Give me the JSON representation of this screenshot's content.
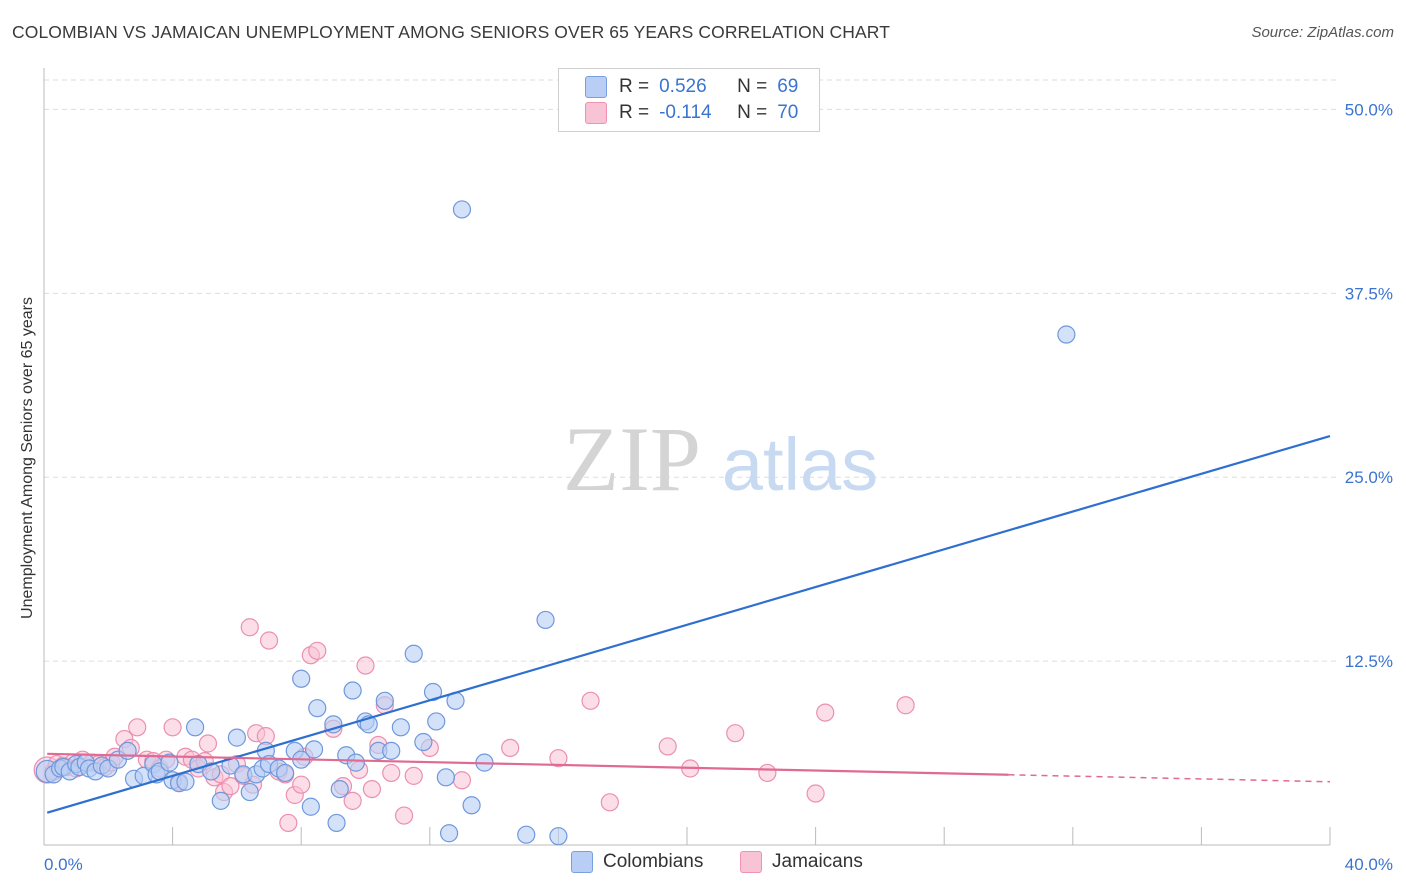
{
  "title": "COLOMBIAN VS JAMAICAN UNEMPLOYMENT AMONG SENIORS OVER 65 YEARS CORRELATION CHART",
  "source": "Source: ZipAtlas.com",
  "watermark": {
    "zip": "ZIP",
    "atlas": "atlas"
  },
  "legend": {
    "colombians": {
      "r_label": "R =",
      "r_value": "0.526",
      "n_label": "N =",
      "n_value": "69"
    },
    "jamaicans": {
      "r_label": "R =",
      "r_value": "-0.114",
      "n_label": "N =",
      "n_value": "70"
    }
  },
  "colors": {
    "colombians_fill": "#b8cef5",
    "colombians_stroke": "#6f98dc",
    "colombians_line": "#2e6fd0",
    "jamaicans_fill": "#f8c3d4",
    "jamaicans_stroke": "#ec8fb0",
    "jamaicans_line": "#e06a93",
    "axis_text": "#3a74d0",
    "grid": "#dddddd"
  },
  "chart_data": {
    "type": "scatter",
    "title": "COLOMBIAN VS JAMAICAN UNEMPLOYMENT AMONG SENIORS OVER 65 YEARS CORRELATION CHART",
    "xlabel": "",
    "ylabel": "Unemployment Among Seniors over 65 years",
    "xlim": [
      0,
      40
    ],
    "ylim": [
      0,
      52
    ],
    "x_tick_labels": [
      "0.0%",
      "40.0%"
    ],
    "y_ticks": [
      12.5,
      25.0,
      37.5,
      50.0
    ],
    "y_tick_labels": [
      "12.5%",
      "25.0%",
      "37.5%",
      "50.0%"
    ],
    "grid": true,
    "series": [
      {
        "name": "Colombians",
        "r": 0.526,
        "n": 69,
        "trend": {
          "x0": 0.1,
          "y0": 2.2,
          "x1": 40,
          "y1": 27.8,
          "solid_until": 40
        },
        "points": [
          [
            0.1,
            5.0
          ],
          [
            0.3,
            4.8
          ],
          [
            0.5,
            5.2
          ],
          [
            0.6,
            5.3
          ],
          [
            0.8,
            5.0
          ],
          [
            1.0,
            5.5
          ],
          [
            1.1,
            5.3
          ],
          [
            1.3,
            5.6
          ],
          [
            1.4,
            5.2
          ],
          [
            1.6,
            5.0
          ],
          [
            1.8,
            5.4
          ],
          [
            2.0,
            5.2
          ],
          [
            2.3,
            5.8
          ],
          [
            2.6,
            6.4
          ],
          [
            2.8,
            4.5
          ],
          [
            3.1,
            4.7
          ],
          [
            3.4,
            5.5
          ],
          [
            3.5,
            4.8
          ],
          [
            3.6,
            5.0
          ],
          [
            3.9,
            5.6
          ],
          [
            4.0,
            4.4
          ],
          [
            4.2,
            4.2
          ],
          [
            4.4,
            4.3
          ],
          [
            4.7,
            8.0
          ],
          [
            4.8,
            5.5
          ],
          [
            5.2,
            5.0
          ],
          [
            5.5,
            3.0
          ],
          [
            5.8,
            5.4
          ],
          [
            6.0,
            7.3
          ],
          [
            6.2,
            4.8
          ],
          [
            6.4,
            3.6
          ],
          [
            6.6,
            4.8
          ],
          [
            6.8,
            5.2
          ],
          [
            6.9,
            6.4
          ],
          [
            7.0,
            5.5
          ],
          [
            7.3,
            5.2
          ],
          [
            7.5,
            4.9
          ],
          [
            7.8,
            6.4
          ],
          [
            8.0,
            5.8
          ],
          [
            8.0,
            11.3
          ],
          [
            8.3,
            2.6
          ],
          [
            8.4,
            6.5
          ],
          [
            8.5,
            9.3
          ],
          [
            9.0,
            8.2
          ],
          [
            9.1,
            1.5
          ],
          [
            9.2,
            3.8
          ],
          [
            9.4,
            6.1
          ],
          [
            9.6,
            10.5
          ],
          [
            9.7,
            5.6
          ],
          [
            10.0,
            8.4
          ],
          [
            10.1,
            8.2
          ],
          [
            10.4,
            6.4
          ],
          [
            10.6,
            9.8
          ],
          [
            10.8,
            6.4
          ],
          [
            11.1,
            8.0
          ],
          [
            11.5,
            13.0
          ],
          [
            11.8,
            7.0
          ],
          [
            12.1,
            10.4
          ],
          [
            12.2,
            8.4
          ],
          [
            12.5,
            4.6
          ],
          [
            12.8,
            9.8
          ],
          [
            12.6,
            0.8
          ],
          [
            13.3,
            2.7
          ],
          [
            13.7,
            5.6
          ],
          [
            15.0,
            0.7
          ],
          [
            15.6,
            15.3
          ],
          [
            16.0,
            0.6
          ],
          [
            13.0,
            43.2
          ],
          [
            31.8,
            34.7
          ]
        ]
      },
      {
        "name": "Jamaicans",
        "r": -0.114,
        "n": 70,
        "trend": {
          "x0": 0.1,
          "y0": 6.2,
          "x1": 40,
          "y1": 4.3,
          "solid_until": 30
        },
        "points": [
          [
            0.1,
            5.1
          ],
          [
            0.3,
            5.0
          ],
          [
            0.4,
            5.5
          ],
          [
            0.6,
            5.4
          ],
          [
            0.7,
            5.3
          ],
          [
            0.9,
            5.6
          ],
          [
            1.0,
            5.2
          ],
          [
            1.2,
            5.8
          ],
          [
            1.5,
            5.6
          ],
          [
            1.7,
            5.5
          ],
          [
            1.9,
            5.3
          ],
          [
            2.1,
            5.6
          ],
          [
            2.2,
            6.0
          ],
          [
            2.5,
            7.2
          ],
          [
            2.7,
            6.6
          ],
          [
            2.9,
            8.0
          ],
          [
            3.2,
            5.8
          ],
          [
            3.4,
            5.7
          ],
          [
            3.6,
            5.2
          ],
          [
            3.8,
            5.8
          ],
          [
            4.0,
            8.0
          ],
          [
            4.2,
            4.3
          ],
          [
            4.4,
            6.0
          ],
          [
            4.6,
            5.8
          ],
          [
            4.8,
            5.2
          ],
          [
            5.0,
            5.7
          ],
          [
            5.1,
            6.9
          ],
          [
            5.3,
            4.6
          ],
          [
            5.5,
            4.8
          ],
          [
            5.6,
            3.6
          ],
          [
            5.8,
            4.0
          ],
          [
            6.0,
            5.5
          ],
          [
            6.2,
            4.7
          ],
          [
            6.4,
            14.8
          ],
          [
            6.5,
            4.1
          ],
          [
            6.6,
            7.6
          ],
          [
            6.9,
            7.4
          ],
          [
            7.0,
            13.9
          ],
          [
            7.3,
            5.0
          ],
          [
            7.5,
            4.8
          ],
          [
            7.6,
            1.5
          ],
          [
            7.8,
            3.4
          ],
          [
            8.0,
            4.1
          ],
          [
            8.1,
            6.0
          ],
          [
            8.3,
            12.9
          ],
          [
            8.5,
            13.2
          ],
          [
            9.0,
            7.9
          ],
          [
            9.3,
            4.0
          ],
          [
            9.6,
            3.0
          ],
          [
            9.8,
            5.1
          ],
          [
            10.0,
            12.2
          ],
          [
            10.2,
            3.8
          ],
          [
            10.4,
            6.8
          ],
          [
            10.6,
            9.5
          ],
          [
            10.8,
            4.9
          ],
          [
            11.2,
            2.0
          ],
          [
            11.5,
            4.7
          ],
          [
            12.0,
            6.6
          ],
          [
            13.0,
            4.4
          ],
          [
            14.5,
            6.6
          ],
          [
            16.0,
            5.9
          ],
          [
            17.0,
            9.8
          ],
          [
            17.6,
            2.9
          ],
          [
            19.4,
            6.7
          ],
          [
            20.1,
            5.2
          ],
          [
            21.5,
            7.6
          ],
          [
            22.5,
            4.9
          ],
          [
            24.0,
            3.5
          ],
          [
            24.3,
            9.0
          ],
          [
            26.8,
            9.5
          ]
        ]
      }
    ]
  },
  "bottom_legend": {
    "colombians": "Colombians",
    "jamaicans": "Jamaicans"
  }
}
